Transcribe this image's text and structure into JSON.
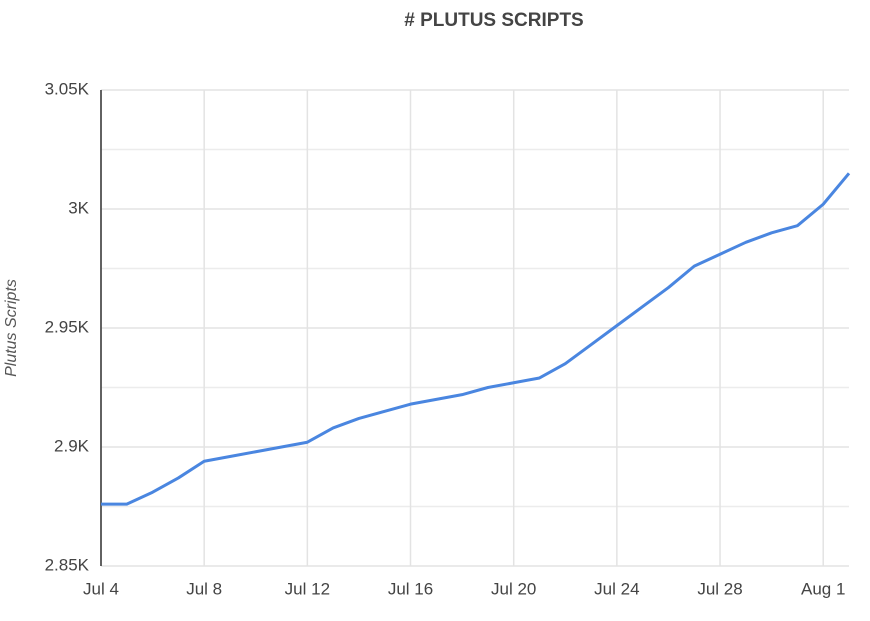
{
  "chart_data": {
    "type": "line",
    "title": "# PLUTUS SCRIPTS",
    "y_label": "Plutus Scripts",
    "categories": [
      "Jul 4",
      null,
      null,
      null,
      "Jul 8",
      null,
      null,
      null,
      "Jul 12",
      null,
      null,
      null,
      "Jul 16",
      null,
      null,
      null,
      "Jul 20",
      null,
      null,
      null,
      "Jul 24",
      null,
      null,
      null,
      "Jul 28",
      null,
      null,
      null,
      "Aug 1",
      null
    ],
    "values": [
      2876,
      2876,
      2881,
      2887,
      2894,
      2896,
      2898,
      2900,
      2902,
      2908,
      2912,
      2915,
      2918,
      2920,
      2922,
      2925,
      2927,
      2929,
      2935,
      2943,
      2951,
      2959,
      2967,
      2976,
      2981,
      2986,
      2990,
      2993,
      3002,
      3015
    ],
    "color": "#4a86e0",
    "ylim": [
      2850,
      3050
    ],
    "yticks": [
      {
        "value": 2850,
        "label": "2.85K"
      },
      {
        "value": 2900,
        "label": "2.9K"
      },
      {
        "value": 2950,
        "label": "2.95K"
      },
      {
        "value": 3000,
        "label": "3K"
      },
      {
        "value": 3050,
        "label": "3.05K"
      }
    ],
    "minor_yticks": [
      2875,
      2925,
      2975,
      3025
    ],
    "grid": true
  }
}
